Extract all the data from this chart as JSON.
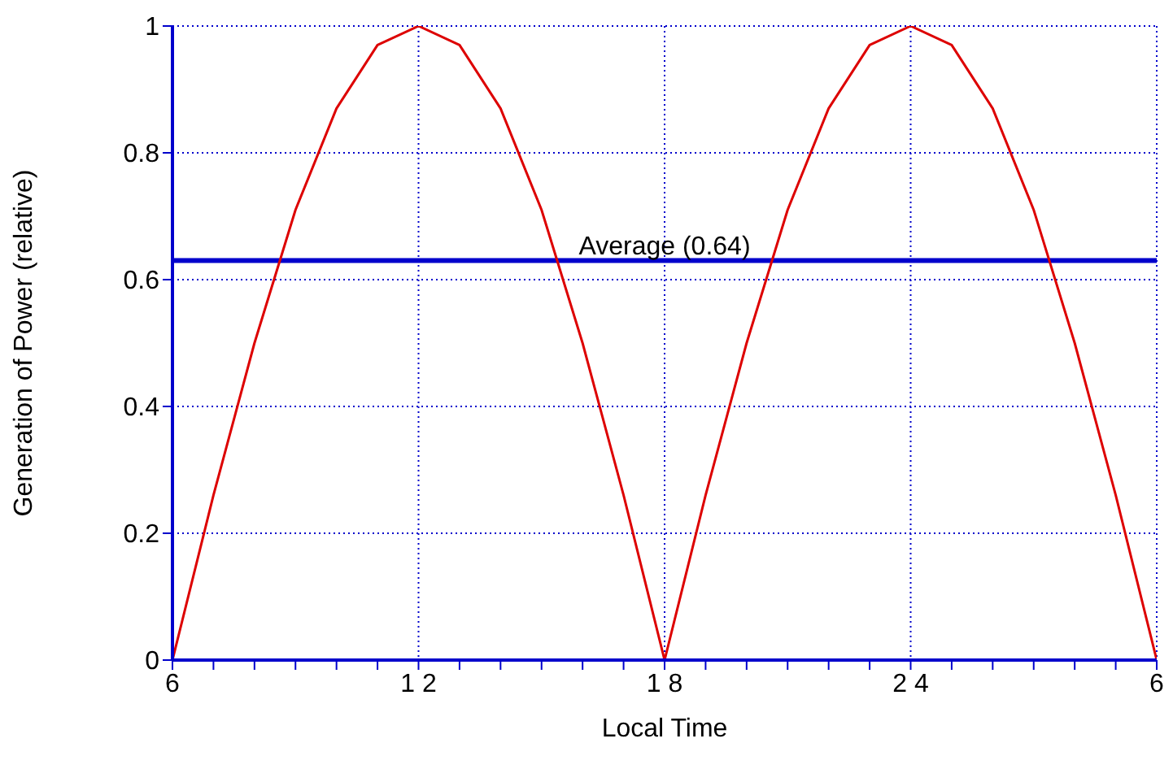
{
  "chart_data": {
    "type": "line",
    "xlabel": "Local Time",
    "ylabel": "Generation of Power (relative)",
    "categories": [
      "6",
      null,
      null,
      null,
      null,
      null,
      "1 2",
      null,
      null,
      null,
      null,
      null,
      "1 8",
      null,
      null,
      null,
      null,
      null,
      "2 4",
      null,
      null,
      null,
      null,
      null,
      "6"
    ],
    "series": [
      {
        "color": "#dd0000",
        "values": [
          0,
          0.26,
          0.5,
          0.71,
          0.87,
          0.97,
          1,
          0.97,
          0.87,
          0.71,
          0.5,
          0.26,
          0,
          0.26,
          0.5,
          0.71,
          0.87,
          0.97,
          1,
          0.97,
          0.87,
          0.71,
          0.5,
          0.26,
          0
        ]
      }
    ],
    "ylim": [
      0,
      1
    ],
    "yticks": [
      0,
      0.2,
      0.4,
      0.6,
      0.8,
      1
    ],
    "ref_lines": [
      {
        "axis": "y",
        "value": 0.63,
        "label": "Average  (0.64)",
        "color": "#0000cc"
      }
    ],
    "grid": true,
    "marker": "none",
    "line_style": "solid"
  }
}
